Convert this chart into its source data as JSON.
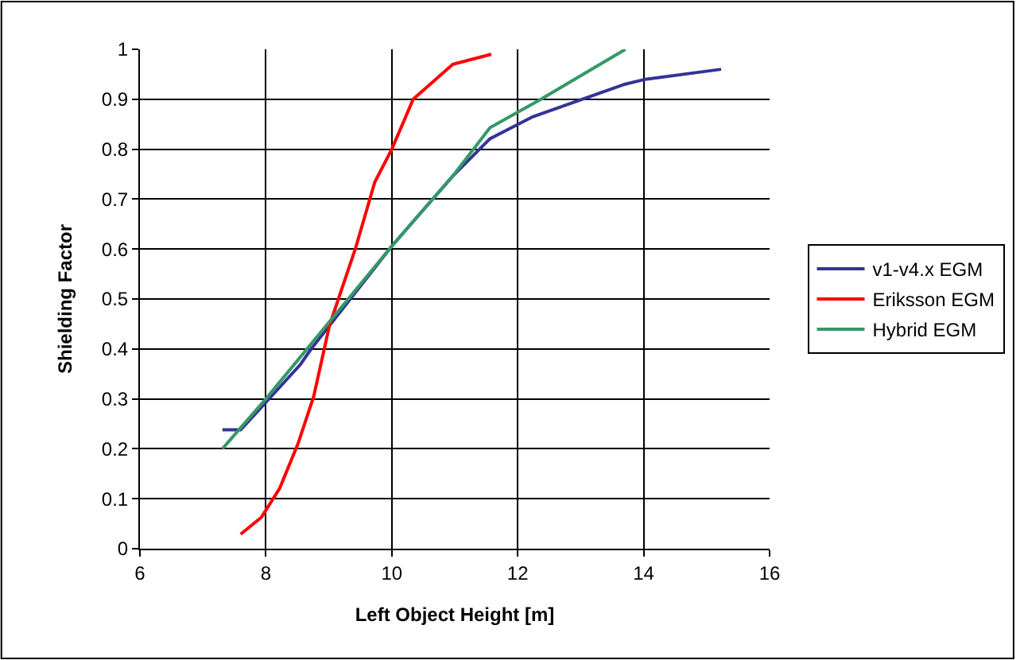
{
  "chart_data": {
    "type": "line",
    "xlabel": "Left Object Height [m]",
    "ylabel": "Shielding Factor",
    "xlim": [
      6,
      16
    ],
    "xticks": [
      6,
      8,
      10,
      12,
      14,
      16
    ],
    "ylim": [
      0,
      1
    ],
    "yticks": [
      0,
      0.1,
      0.2,
      0.3,
      0.4,
      0.5,
      0.6,
      0.7,
      0.8,
      0.9,
      1
    ],
    "grid": true,
    "legend": "right",
    "marker": "none",
    "line_style": "solid",
    "series": [
      {
        "name": "v1-v4.x EGM",
        "color": "#333399",
        "x": [
          7.31,
          7.6,
          8.0,
          8.55,
          8.72,
          10.0,
          10.96,
          11.56,
          12.24,
          13.7,
          14.03,
          15.23
        ],
        "values": [
          0.238,
          0.238,
          0.293,
          0.369,
          0.4,
          0.606,
          0.745,
          0.821,
          0.865,
          0.93,
          0.94,
          0.96
        ]
      },
      {
        "name": "Eriksson EGM",
        "color": "#ff0000",
        "x": [
          7.6,
          7.93,
          8.22,
          8.51,
          8.76,
          9.01,
          9.42,
          9.73,
          10.0,
          10.34,
          10.97,
          11.58
        ],
        "values": [
          0.029,
          0.063,
          0.121,
          0.21,
          0.305,
          0.447,
          0.6,
          0.734,
          0.8,
          0.9,
          0.97,
          0.99
        ]
      },
      {
        "name": "Hybrid EGM",
        "color": "#339966",
        "x": [
          7.31,
          8.0,
          10.0,
          10.96,
          11.56,
          12.37,
          13.71
        ],
        "values": [
          0.2,
          0.3,
          0.606,
          0.745,
          0.843,
          0.9,
          1.0
        ]
      }
    ]
  }
}
